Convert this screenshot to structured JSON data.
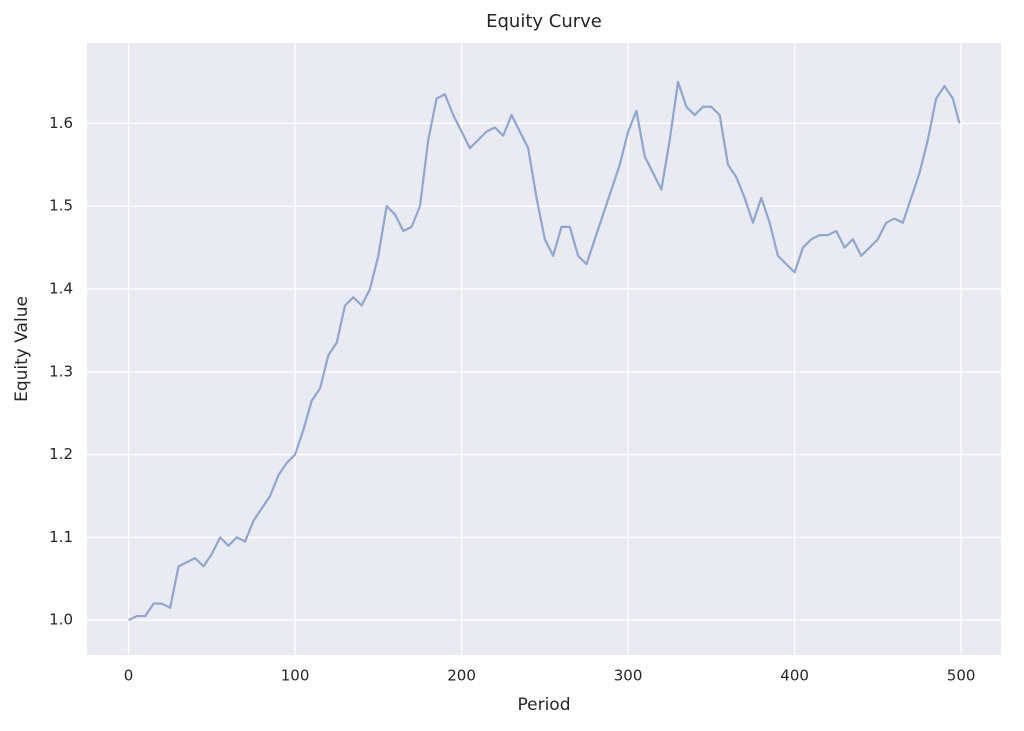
{
  "chart_data": {
    "type": "line",
    "title": "Equity Curve",
    "x_label": "Period",
    "y_label": "Equity Value",
    "x": [
      0,
      5,
      10,
      15,
      20,
      25,
      30,
      35,
      40,
      45,
      50,
      55,
      60,
      65,
      70,
      75,
      80,
      85,
      90,
      95,
      100,
      105,
      110,
      115,
      120,
      125,
      130,
      135,
      140,
      145,
      150,
      155,
      160,
      165,
      170,
      175,
      180,
      185,
      190,
      195,
      200,
      205,
      210,
      215,
      220,
      225,
      230,
      235,
      240,
      245,
      250,
      255,
      260,
      265,
      270,
      275,
      280,
      285,
      290,
      295,
      300,
      305,
      310,
      315,
      320,
      325,
      330,
      335,
      340,
      345,
      350,
      355,
      360,
      365,
      370,
      375,
      380,
      385,
      390,
      395,
      400,
      405,
      410,
      415,
      420,
      425,
      430,
      435,
      440,
      445,
      450,
      455,
      460,
      465,
      470,
      475,
      480,
      485,
      490,
      495,
      499
    ],
    "series": [
      {
        "name": "Equity",
        "color": "#8ea6d0",
        "values": [
          1.0,
          1.005,
          1.005,
          1.02,
          1.02,
          1.015,
          1.065,
          1.07,
          1.075,
          1.065,
          1.08,
          1.1,
          1.09,
          1.1,
          1.095,
          1.12,
          1.135,
          1.15,
          1.175,
          1.19,
          1.2,
          1.23,
          1.265,
          1.28,
          1.32,
          1.335,
          1.38,
          1.39,
          1.38,
          1.4,
          1.44,
          1.5,
          1.49,
          1.47,
          1.475,
          1.5,
          1.58,
          1.63,
          1.635,
          1.61,
          1.59,
          1.57,
          1.58,
          1.59,
          1.595,
          1.585,
          1.61,
          1.59,
          1.57,
          1.51,
          1.46,
          1.44,
          1.475,
          1.475,
          1.44,
          1.43,
          1.46,
          1.49,
          1.52,
          1.55,
          1.59,
          1.615,
          1.56,
          1.54,
          1.52,
          1.58,
          1.65,
          1.62,
          1.61,
          1.62,
          1.62,
          1.61,
          1.55,
          1.535,
          1.51,
          1.48,
          1.51,
          1.48,
          1.44,
          1.43,
          1.42,
          1.45,
          1.46,
          1.465,
          1.465,
          1.47,
          1.45,
          1.46,
          1.44,
          1.45,
          1.46,
          1.48,
          1.485,
          1.48,
          1.51,
          1.54,
          1.58,
          1.63,
          1.645,
          1.63,
          1.6
        ]
      }
    ],
    "xlim": [
      -24.95,
      523.95
    ],
    "ylim": [
      0.958,
      1.697
    ],
    "xticks": [
      0,
      100,
      200,
      300,
      400,
      500
    ],
    "yticks": [
      {
        "value": 1,
        "label": "1.0"
      },
      1.1,
      1.2,
      1.3,
      1.4,
      1.5,
      1.6
    ],
    "grid": true,
    "background": "#eaeaf2"
  }
}
